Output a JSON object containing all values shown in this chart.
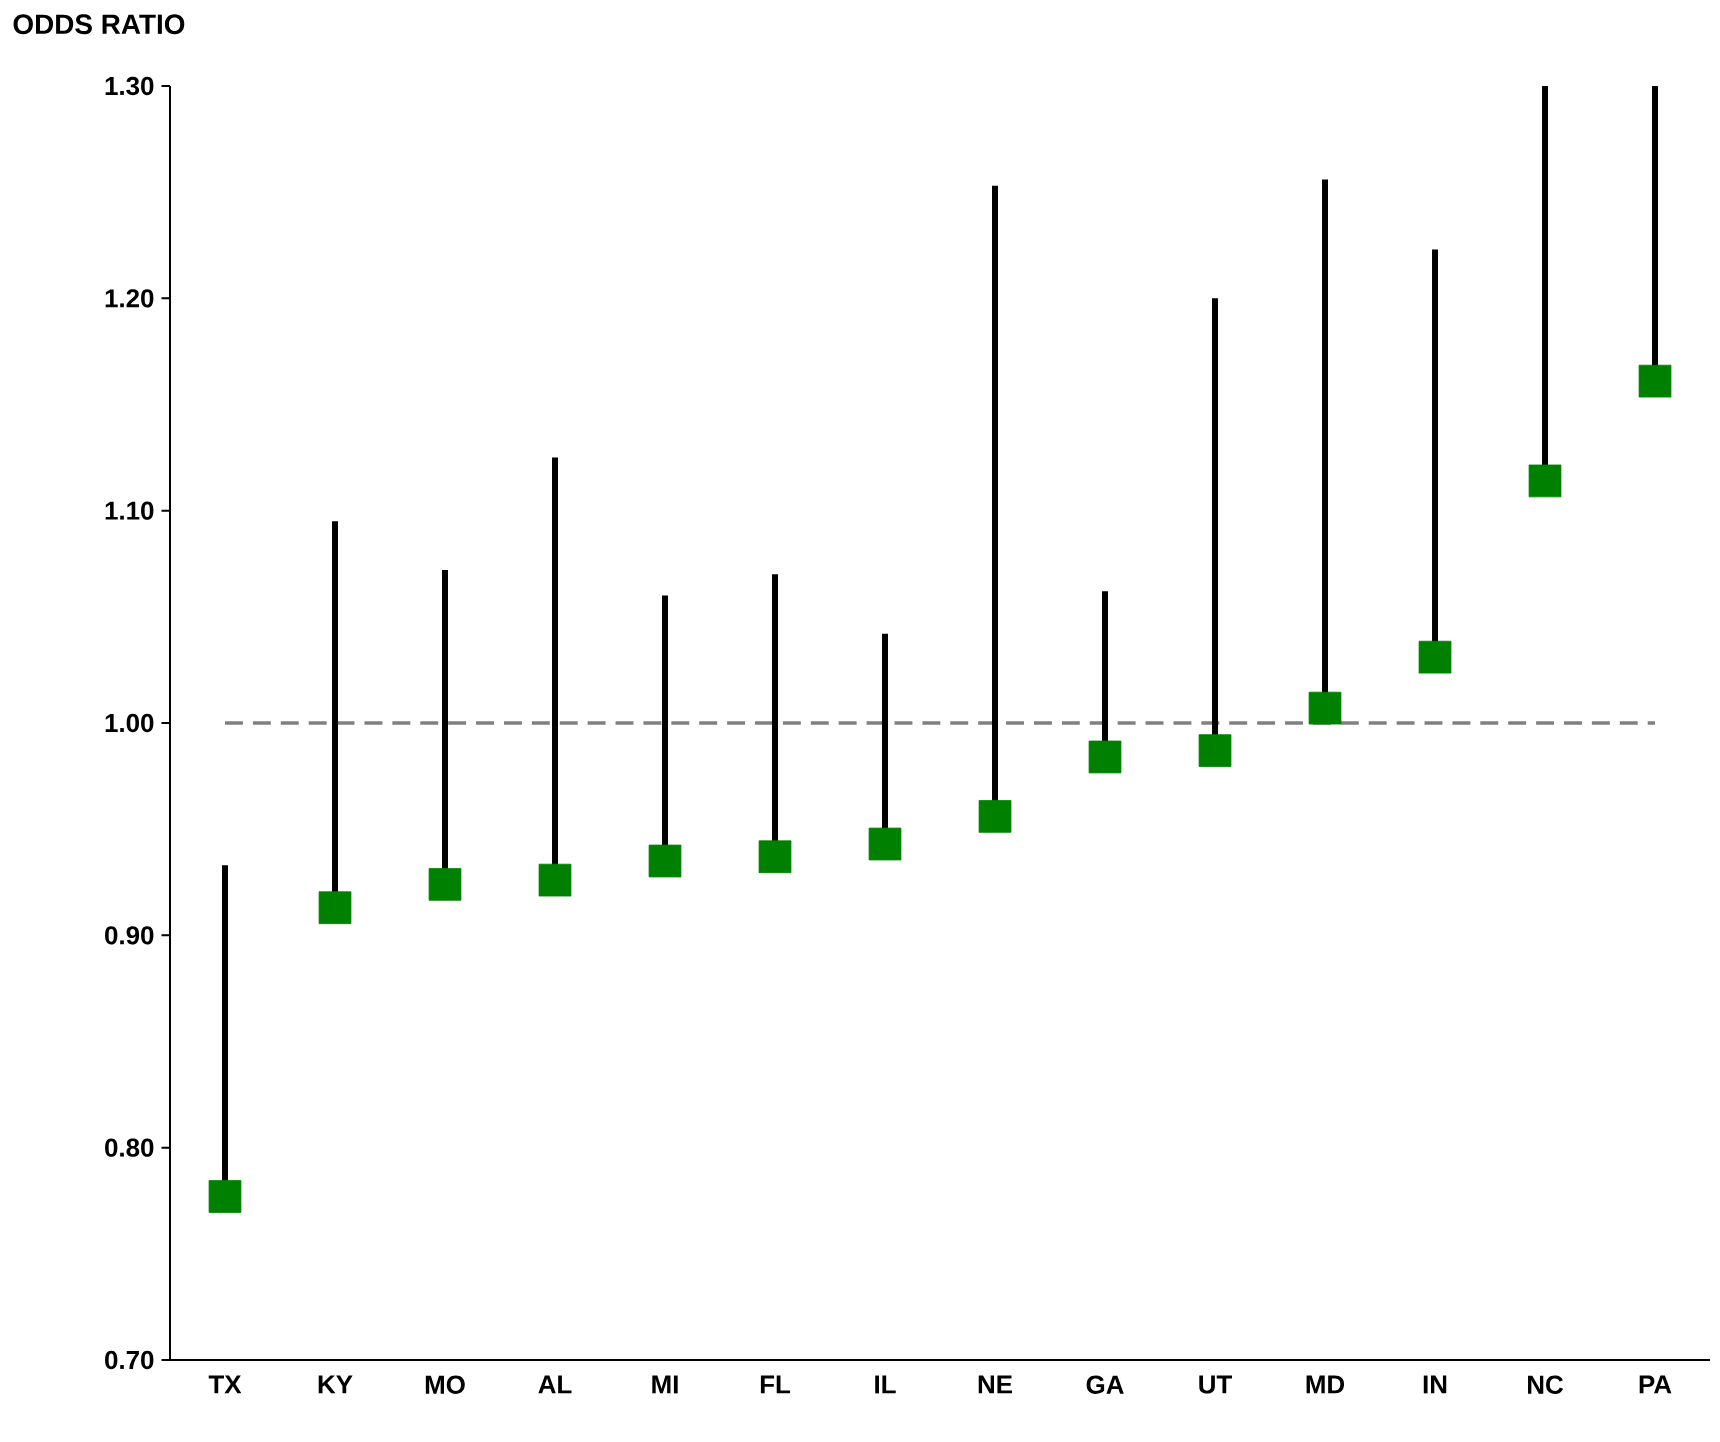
{
  "chart_data": {
    "type": "scatter",
    "ylabel": "ODDS RATIO",
    "categories": [
      "TX",
      "KY",
      "MO",
      "AL",
      "MI",
      "FL",
      "IL",
      "NE",
      "GA",
      "UT",
      "MD",
      "IN",
      "NC",
      "PA"
    ],
    "series": [
      {
        "color": "#008000",
        "values": [
          0.777,
          0.913,
          0.924,
          0.926,
          0.935,
          0.937,
          0.943,
          0.956,
          0.984,
          0.987,
          1.007,
          1.031,
          1.114,
          1.161
        ],
        "errors": [
          [
            0.777,
            0.933
          ],
          [
            0.913,
            1.095
          ],
          [
            0.924,
            1.072
          ],
          [
            0.926,
            1.125
          ],
          [
            0.935,
            1.06
          ],
          [
            0.937,
            1.07
          ],
          [
            0.943,
            1.042
          ],
          [
            0.956,
            1.253
          ],
          [
            0.984,
            1.062
          ],
          [
            0.987,
            1.2
          ],
          [
            1.007,
            1.256
          ],
          [
            1.031,
            1.223
          ],
          [
            1.114,
            1.3
          ],
          [
            1.161,
            1.3
          ]
        ]
      }
    ],
    "ylim": [
      0.7,
      1.3
    ],
    "yticks": [
      {
        "value": 0.7,
        "label": "0.70"
      },
      {
        "value": 0.8,
        "label": "0.80"
      },
      {
        "value": 0.9,
        "label": "0.90"
      },
      {
        "value": 1.0,
        "label": "1.00"
      },
      {
        "value": 1.1,
        "label": "1.10"
      },
      {
        "value": 1.2,
        "label": "1.20"
      },
      {
        "value": 1.3,
        "label": "1.30"
      }
    ],
    "ref_lines": [
      {
        "axis": "y",
        "value": 1.0,
        "color": "#808080",
        "line_style": "dashed"
      }
    ],
    "marker": "square",
    "grid": false
  }
}
